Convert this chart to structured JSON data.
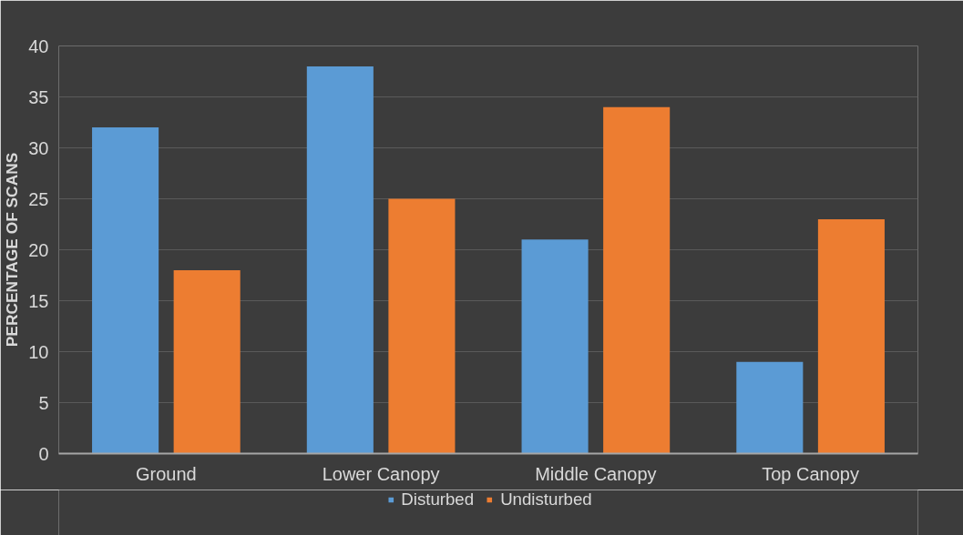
{
  "chart_data": {
    "type": "bar",
    "ylabel": "PERCENTAGE OF SCANS",
    "categories": [
      "Ground",
      "Lower Canopy",
      "Middle Canopy",
      "Top Canopy"
    ],
    "series": [
      {
        "name": "Disturbed",
        "color": "#5b9bd5",
        "values": [
          32,
          38,
          21,
          9
        ]
      },
      {
        "name": "Undisturbed",
        "color": "#ed7d31",
        "values": [
          18,
          25,
          34,
          23
        ]
      }
    ],
    "ylim": [
      0,
      40
    ],
    "yticks": [
      0,
      5,
      10,
      15,
      20,
      25,
      30,
      35,
      40
    ],
    "grid": "y",
    "legend": "bottom"
  }
}
